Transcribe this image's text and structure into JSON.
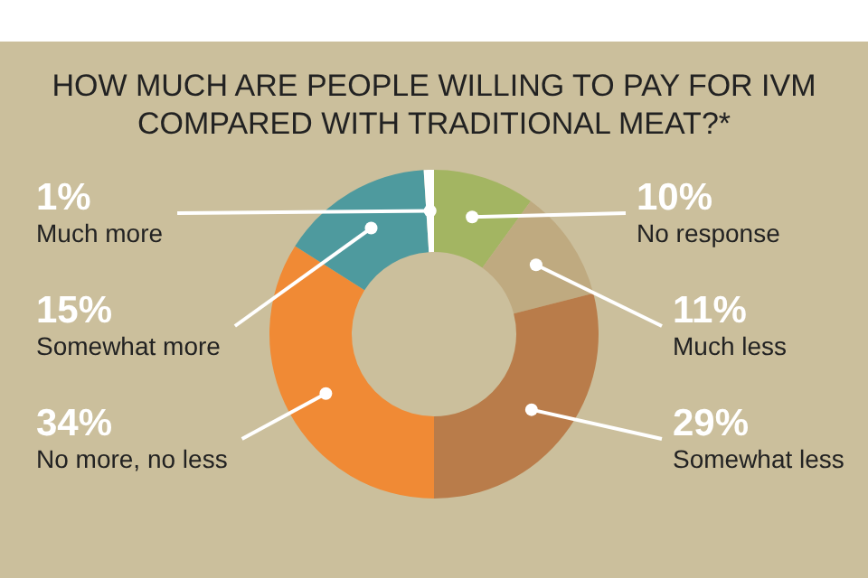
{
  "chart_data": {
    "type": "donut",
    "title": "HOW MUCH ARE PEOPLE WILLING TO PAY FOR IVM COMPARED WITH TRADITIONAL MEAT?*",
    "categories": [
      "No response",
      "Much less",
      "Somewhat less",
      "No more, no less",
      "Somewhat more",
      "Much more"
    ],
    "values": [
      10,
      11,
      29,
      34,
      15,
      1
    ],
    "colors": [
      "#a3b562",
      "#bfaa80",
      "#b97c4a",
      "#f08a35",
      "#4e9a9e",
      "#ffffff"
    ],
    "value_labels": [
      "10%",
      "11%",
      "29%",
      "34%",
      "15%",
      "1%"
    ],
    "legend": false
  }
}
